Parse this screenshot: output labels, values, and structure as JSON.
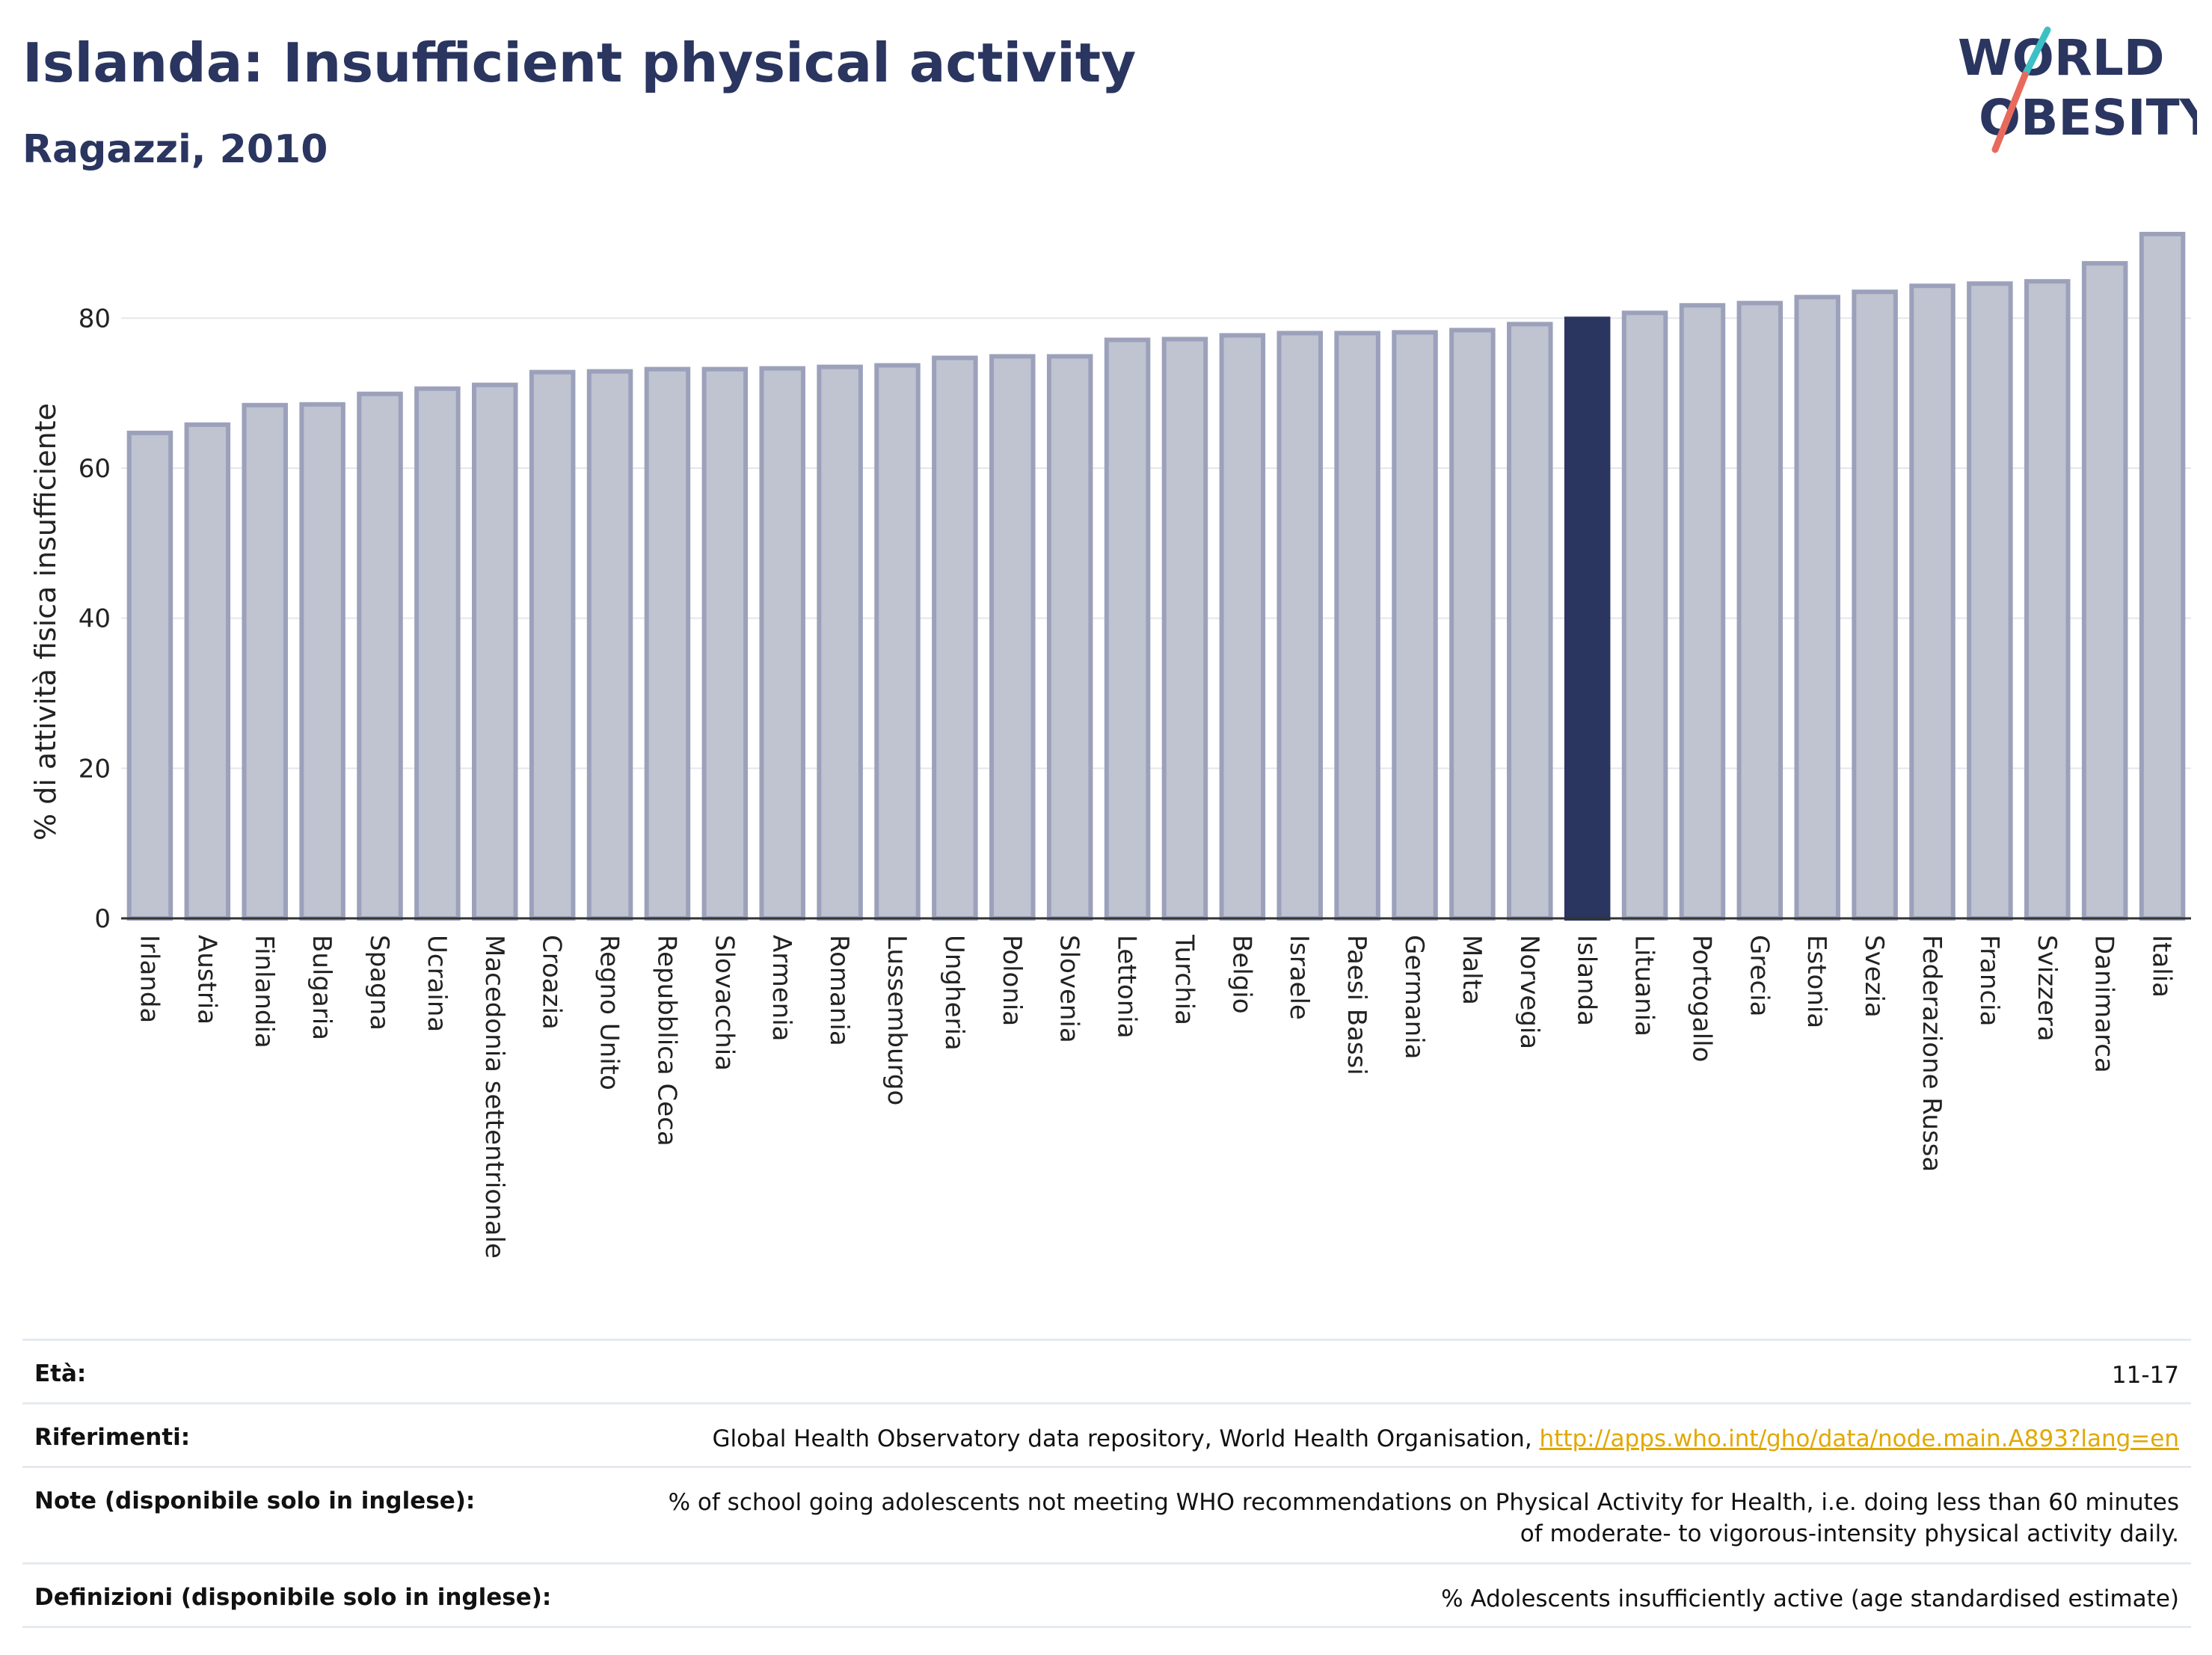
{
  "header": {
    "title": "Islanda: Insufficient physical activity",
    "subtitle": "Ragazzi, 2010"
  },
  "logo": {
    "line1": "WORLD",
    "line2": "OBESITY"
  },
  "colors": {
    "bar": "#c0c3d0",
    "bar_border": "#9ca1bb",
    "highlight": "#2a3560",
    "text": "#2a3560"
  },
  "chart_data": {
    "type": "bar",
    "ylabel": "% di attività fisica insufficiente",
    "ylim": [
      0,
      91
    ],
    "yticks": [
      0,
      20,
      40,
      60,
      80
    ],
    "grid": true,
    "highlight": "Islanda",
    "categories": [
      "Irlanda",
      "Austria",
      "Finlandia",
      "Bulgaria",
      "Spagna",
      "Ucraina",
      "Macedonia settentrionale",
      "Croazia",
      "Regno Unito",
      "Repubblica Ceca",
      "Slovacchia",
      "Armenia",
      "Romania",
      "Lussemburgo",
      "Ungheria",
      "Polonia",
      "Slovenia",
      "Lettonia",
      "Turchia",
      "Belgio",
      "Israele",
      "Paesi Bassi",
      "Germania",
      "Malta",
      "Norvegia",
      "Islanda",
      "Lituania",
      "Portogallo",
      "Grecia",
      "Estonia",
      "Svezia",
      "Federazione Russa",
      "Francia",
      "Svizzera",
      "Danimarca",
      "Italia"
    ],
    "values": [
      64.7,
      65.8,
      68.4,
      68.5,
      69.9,
      70.6,
      71.1,
      72.8,
      72.9,
      73.2,
      73.2,
      73.3,
      73.5,
      73.7,
      74.7,
      74.9,
      74.9,
      77.1,
      77.2,
      77.7,
      78.0,
      78.0,
      78.1,
      78.4,
      79.2,
      79.9,
      80.7,
      81.7,
      82.0,
      82.8,
      83.5,
      84.3,
      84.6,
      84.9,
      87.3,
      91.2
    ]
  },
  "meta": {
    "age_label": "Età:",
    "age_value": "11-17",
    "refs_label": "Riferimenti:",
    "refs_text": "Global Health Observatory data repository, World Health Organisation, ",
    "refs_link": "http://apps.who.int/gho/data/node.main.A893?lang=en",
    "notes_label": "Note (disponibile solo in inglese):",
    "notes_value": "% of school going adolescents not meeting WHO recommendations on Physical Activity for Health, i.e. doing less than 60 minutes of moderate- to vigorous-intensity physical activity daily.",
    "defs_label": "Definizioni (disponibile solo in inglese):",
    "defs_value": "% Adolescents insufficiently active (age standardised estimate)"
  }
}
